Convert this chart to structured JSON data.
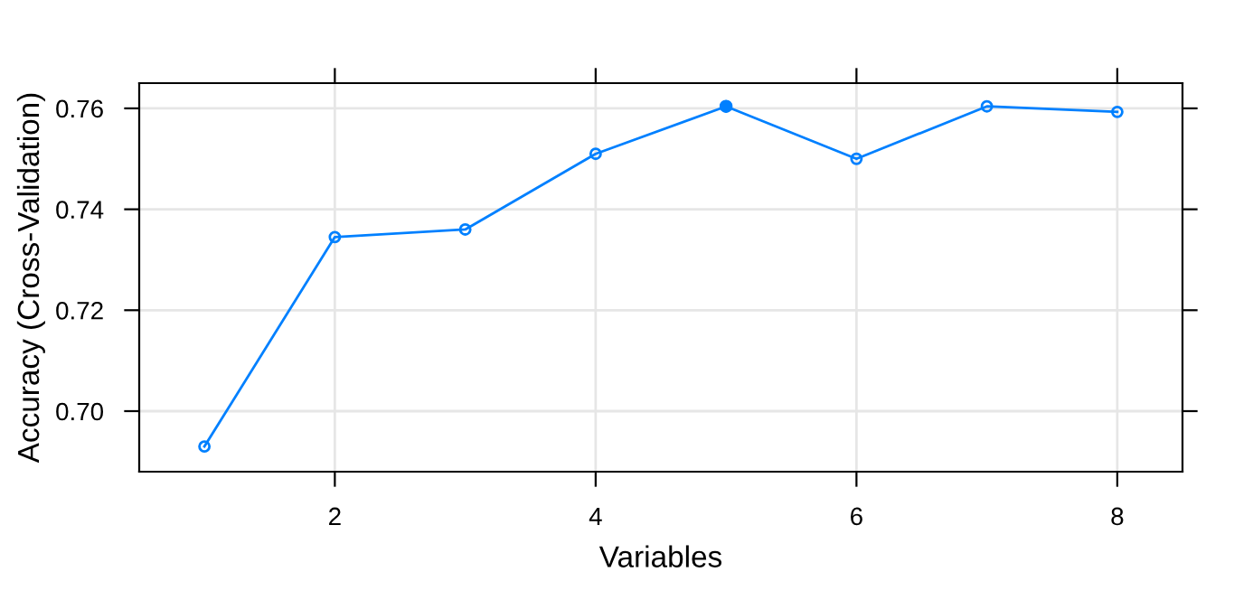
{
  "chart_data": {
    "type": "line",
    "xlabel": "Variables",
    "ylabel": "Accuracy (Cross-Validation)",
    "x": [
      1,
      2,
      3,
      4,
      5,
      6,
      7,
      8
    ],
    "series": [
      {
        "color": "#0080ff",
        "values": [
          0.693,
          0.7345,
          0.736,
          0.751,
          0.7604,
          0.75,
          0.7604,
          0.7593
        ],
        "marker": "circle"
      },
      {
        "type": "scatter",
        "color": "#0080ff",
        "x": [
          5
        ],
        "values": [
          0.7604
        ]
      }
    ],
    "xlim": [
      0.5,
      8.5
    ],
    "xticks": [
      2,
      4,
      6,
      8
    ],
    "ylim": [
      0.688,
      0.765
    ],
    "yticks": [
      {
        "value": 0.7,
        "label": "0.70"
      },
      0.72,
      0.74,
      0.76
    ],
    "grid": true,
    "line_style": "solid"
  }
}
